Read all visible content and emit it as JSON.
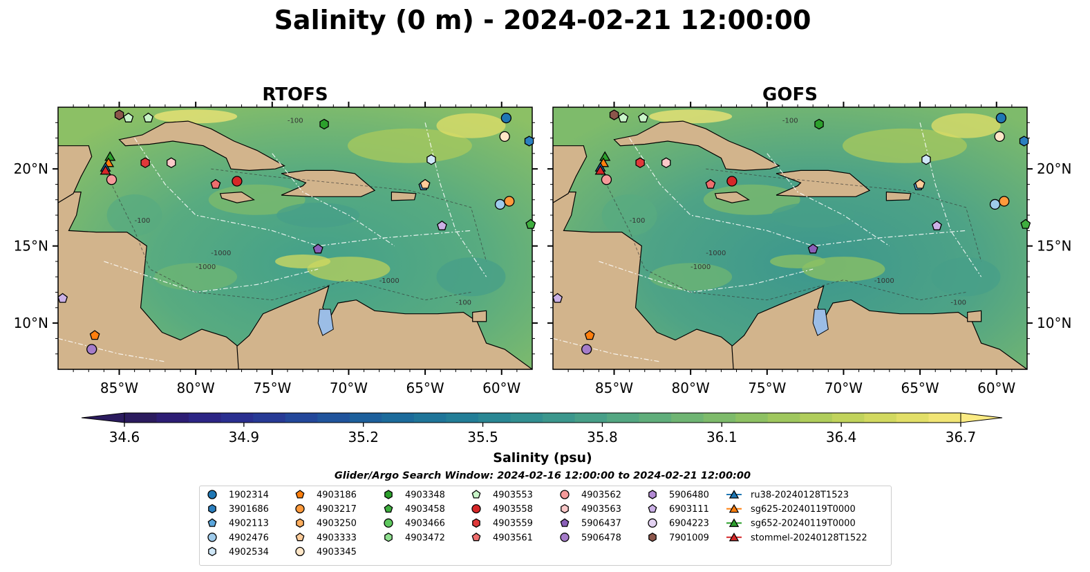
{
  "chart_data": {
    "type": "heatmap",
    "title": "Salinity (0 m) - 2024-02-21 12:00:00",
    "panels": [
      {
        "title": "RTOFS"
      },
      {
        "title": "GOFS"
      }
    ],
    "x_ticks": [
      -85,
      -80,
      -75,
      -70,
      -65,
      -60
    ],
    "x_tick_labels": [
      "85°W",
      "80°W",
      "75°W",
      "70°W",
      "65°W",
      "60°W"
    ],
    "y_ticks": [
      10,
      15,
      20
    ],
    "y_tick_labels": [
      "10°N",
      "15°N",
      "20°N"
    ],
    "xlim": [
      -89,
      -58
    ],
    "ylim": [
      7,
      24
    ],
    "colorbar": {
      "label": "Salinity (psu)",
      "ticks": [
        34.6,
        34.9,
        35.2,
        35.5,
        35.8,
        36.1,
        36.4,
        36.7
      ],
      "tick_labels": [
        "34.6",
        "34.9",
        "35.2",
        "35.5",
        "35.8",
        "36.1",
        "36.4",
        "36.7"
      ],
      "range": [
        34.6,
        36.7
      ],
      "extend": "both",
      "colors": [
        "#2b1b5e",
        "#2d1d74",
        "#2c2585",
        "#2a2f90",
        "#273a95",
        "#23479a",
        "#20549c",
        "#1d609c",
        "#1c6b9b",
        "#1f7599",
        "#237e97",
        "#2a8794",
        "#328f91",
        "#3c978d",
        "#479f88",
        "#53a782",
        "#60ae7b",
        "#6fb573",
        "#7ebb6b",
        "#8ec163",
        "#9fc75e",
        "#b0cd5b",
        "#c1d35c",
        "#d2d960",
        "#e2df68",
        "#f1e575"
      ]
    },
    "contour_labels": [
      "-100",
      "-1000",
      "-1000",
      "-100",
      "-1000",
      "-100"
    ],
    "subtitle": "Glider/Argo Search Window: 2024-02-16 12:00:00 to 2024-02-21 12:00:00",
    "legend": {
      "placement": "bottom-center",
      "columns": [
        [
          {
            "label": "1902314",
            "marker": "circle",
            "color": "#1f77b4"
          },
          {
            "label": "3901686",
            "marker": "hexagon",
            "color": "#2b7fbf"
          },
          {
            "label": "4902113",
            "marker": "pentagon",
            "color": "#5aa6dc"
          },
          {
            "label": "4902476",
            "marker": "circle",
            "color": "#9fcbeb"
          },
          {
            "label": "4902534",
            "marker": "hexagon",
            "color": "#cfe7f7"
          }
        ],
        [
          {
            "label": "4903186",
            "marker": "pentagon",
            "color": "#ff7f0e"
          },
          {
            "label": "4903217",
            "marker": "circle",
            "color": "#ff9a3c"
          },
          {
            "label": "4903250",
            "marker": "hexagon",
            "color": "#ffae5e"
          },
          {
            "label": "4903333",
            "marker": "pentagon",
            "color": "#ffcc99"
          },
          {
            "label": "4903345",
            "marker": "circle",
            "color": "#ffe6c7"
          }
        ],
        [
          {
            "label": "4903348",
            "marker": "hexagon",
            "color": "#2ca02c"
          },
          {
            "label": "4903458",
            "marker": "pentagon",
            "color": "#3fae3f"
          },
          {
            "label": "4903466",
            "marker": "circle",
            "color": "#5ec85e"
          },
          {
            "label": "4903472",
            "marker": "hexagon",
            "color": "#8fe08f"
          }
        ],
        [
          {
            "label": "4903553",
            "marker": "pentagon",
            "color": "#c9f5c9"
          },
          {
            "label": "4903558",
            "marker": "circle",
            "color": "#d62728"
          },
          {
            "label": "4903559",
            "marker": "hexagon",
            "color": "#e0393a"
          },
          {
            "label": "4903561",
            "marker": "pentagon",
            "color": "#ee6e6e"
          }
        ],
        [
          {
            "label": "4903562",
            "marker": "circle",
            "color": "#f59a9a"
          },
          {
            "label": "4903563",
            "marker": "hexagon",
            "color": "#fbc9c9"
          },
          {
            "label": "5906437",
            "marker": "pentagon",
            "color": "#8a5fb8"
          },
          {
            "label": "5906478",
            "marker": "circle",
            "color": "#a57cc9"
          }
        ],
        [
          {
            "label": "5906480",
            "marker": "hexagon",
            "color": "#b38ad4"
          },
          {
            "label": "6903111",
            "marker": "pentagon",
            "color": "#cbb1e6"
          },
          {
            "label": "6904223",
            "marker": "circle",
            "color": "#e3d2f2"
          },
          {
            "label": "7901009",
            "marker": "hexagon",
            "color": "#8c564b"
          }
        ],
        [
          {
            "label": "ru38-20240128T1523",
            "marker": "triangle-line",
            "color": "#1f77b4"
          },
          {
            "label": "sg625-20240119T0000",
            "marker": "triangle-line",
            "color": "#ff7f0e"
          },
          {
            "label": "sg652-20240119T0000",
            "marker": "triangle-line",
            "color": "#2ca02c"
          },
          {
            "label": "stommel-20240128T1522",
            "marker": "triangle-line",
            "color": "#d62728"
          }
        ]
      ]
    },
    "floats": [
      {
        "id": "1902314",
        "lon": -59.7,
        "lat": 23.3
      },
      {
        "id": "3901686",
        "lon": -58.2,
        "lat": 21.8
      },
      {
        "id": "4902113",
        "lon": -65.1,
        "lat": 18.9
      },
      {
        "id": "4902476",
        "lon": -60.1,
        "lat": 17.7
      },
      {
        "id": "4902534",
        "lon": -64.6,
        "lat": 20.6
      },
      {
        "id": "7901009",
        "lon": -85.0,
        "lat": 23.5
      },
      {
        "id": "4903553",
        "lon": -84.4,
        "lat": 23.3
      },
      {
        "id": "4903553",
        "lon": -83.1,
        "lat": 23.3
      },
      {
        "id": "4903348",
        "lon": -71.6,
        "lat": 22.9
      },
      {
        "id": "4903345",
        "lon": -59.8,
        "lat": 22.1
      },
      {
        "id": "4903559",
        "lon": -83.3,
        "lat": 20.4
      },
      {
        "id": "4903563",
        "lon": -81.6,
        "lat": 20.4
      },
      {
        "id": "4903561",
        "lon": -78.7,
        "lat": 19.0
      },
      {
        "id": "4903558",
        "lon": -77.3,
        "lat": 19.2
      },
      {
        "id": "4903562",
        "lon": -85.5,
        "lat": 19.3
      },
      {
        "id": "4903333",
        "lon": -65.0,
        "lat": 19.0
      },
      {
        "id": "4903217",
        "lon": -59.5,
        "lat": 17.9
      },
      {
        "id": "6903111",
        "lon": -63.9,
        "lat": 16.3
      },
      {
        "id": "4903458",
        "lon": -58.1,
        "lat": 16.4
      },
      {
        "id": "5906437",
        "lon": -72.0,
        "lat": 14.8
      },
      {
        "id": "6903111",
        "lon": -88.7,
        "lat": 11.6
      },
      {
        "id": "4903186",
        "lon": -86.6,
        "lat": 9.2
      },
      {
        "id": "5906478",
        "lon": -86.8,
        "lat": 8.3
      }
    ],
    "gliders": [
      {
        "id": "sg652-20240119T0000",
        "lon": -85.6,
        "lat": 20.8
      },
      {
        "id": "sg625-20240119T0000",
        "lon": -85.7,
        "lat": 20.4
      },
      {
        "id": "ru38-20240128T1523",
        "lon": -85.9,
        "lat": 20.1
      },
      {
        "id": "stommel-20240128T1522",
        "lon": -85.9,
        "lat": 19.9
      }
    ]
  }
}
